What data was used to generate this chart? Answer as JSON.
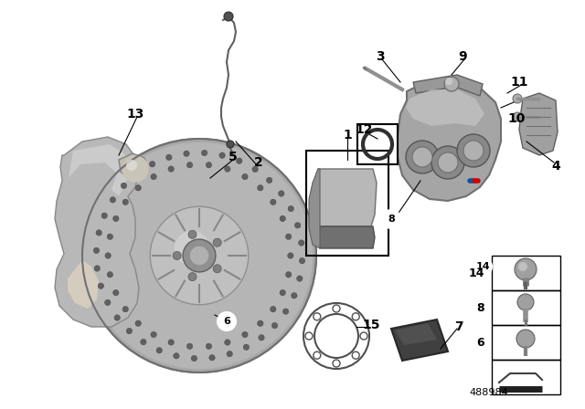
{
  "title": "",
  "background_color": "#ffffff",
  "part_number": "488984",
  "gray_light": "#c8c8c8",
  "gray_mid": "#a8a8a8",
  "gray_dark": "#707070",
  "gray_shield": "#b0b0b0",
  "gray_caliper": "#a0a0a0",
  "bmw_blue": "#0055a5",
  "bmw_red": "#cc0000",
  "bmw_purple": "#8b0071",
  "line_color": "#000000",
  "label_fontsize": 10,
  "circled": [
    "6",
    "8",
    "14"
  ]
}
